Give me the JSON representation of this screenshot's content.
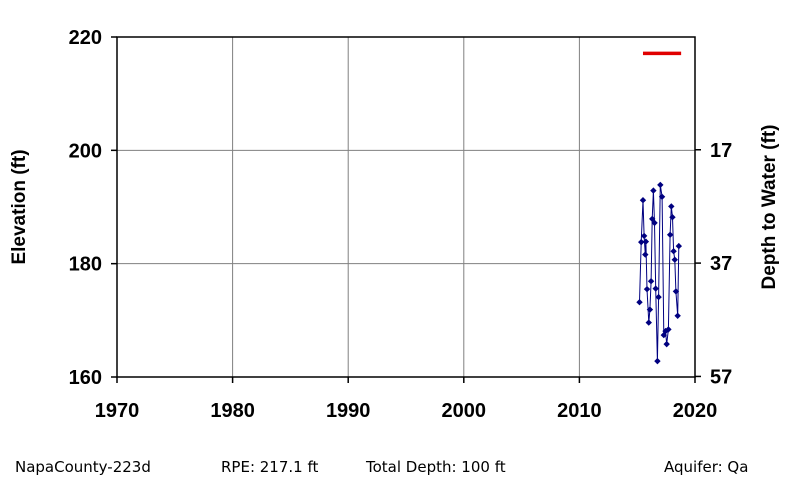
{
  "chart_data": {
    "type": "scatter",
    "xlim": [
      1970,
      2020
    ],
    "ylim": [
      160,
      220
    ],
    "x_ticks": [
      "1970",
      "1980",
      "1990",
      "2000",
      "2010",
      "2020"
    ],
    "y_ticks_left": [
      "160",
      "180",
      "200",
      "220"
    ],
    "y_ticks_right": [
      "57",
      "37",
      "17"
    ],
    "ylabel_left": "Elevation (ft)",
    "ylabel_right": "Depth to Water (ft)",
    "grid": true,
    "reference_line": {
      "y": 217.1,
      "x": [
        2015.5,
        2018.8
      ],
      "color": "#e00000"
    },
    "series": [
      {
        "color": "#000080",
        "points": [
          [
            2015.2,
            173.2
          ],
          [
            2015.35,
            183.8
          ],
          [
            2015.5,
            191.2
          ],
          [
            2015.6,
            184.9
          ],
          [
            2015.7,
            181.6
          ],
          [
            2015.75,
            183.9
          ],
          [
            2015.85,
            175.5
          ],
          [
            2016.0,
            169.6
          ],
          [
            2016.1,
            171.9
          ],
          [
            2016.2,
            176.9
          ],
          [
            2016.3,
            187.9
          ],
          [
            2016.4,
            192.9
          ],
          [
            2016.5,
            187.2
          ],
          [
            2016.6,
            175.6
          ],
          [
            2016.75,
            162.8
          ],
          [
            2016.85,
            174.1
          ],
          [
            2017.0,
            193.9
          ],
          [
            2017.15,
            191.8
          ],
          [
            2017.3,
            167.4
          ],
          [
            2017.45,
            168.1
          ],
          [
            2017.55,
            165.8
          ],
          [
            2017.7,
            168.4
          ],
          [
            2017.85,
            185.1
          ],
          [
            2017.95,
            190.1
          ],
          [
            2018.05,
            188.2
          ],
          [
            2018.15,
            182.2
          ],
          [
            2018.25,
            180.7
          ],
          [
            2018.35,
            175.1
          ],
          [
            2018.5,
            170.8
          ],
          [
            2018.6,
            183.1
          ]
        ]
      }
    ]
  },
  "footer": {
    "well_name": "NapaCounty-223d",
    "rpe": "RPE: 217.1 ft",
    "total_depth": "Total Depth: 100 ft",
    "aquifer": "Aquifer: Qa"
  }
}
